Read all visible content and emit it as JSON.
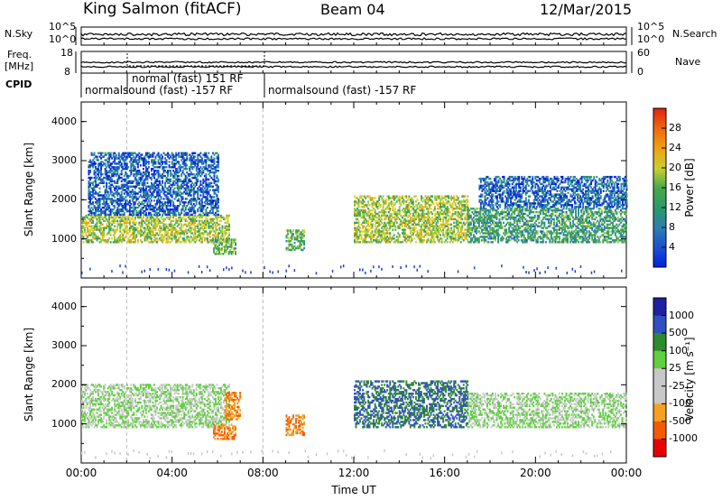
{
  "header": {
    "station": "King Salmon (fitACF)",
    "beam": "Beam 04",
    "date": "12/Mar/2015"
  },
  "strip": {
    "nsky_label": "N.Sky",
    "nsearch_label": "N.Search",
    "nsky_ticks": [
      "10^5",
      "10^0"
    ],
    "nsearch_ticks": [
      "10^5",
      "10^0"
    ],
    "freq_label": "Freq.",
    "freq_unit": "[MHz]",
    "freq_ticks": [
      "18",
      "8"
    ],
    "nave_label": "Nave",
    "nave_ticks": [
      "60",
      "0"
    ],
    "cpid_label": "CPID",
    "cpid_segments": [
      "normalsound (fast) -157 RF",
      "normal (fast) 151 RF",
      "normalsound (fast) -157 RF"
    ]
  },
  "chart_data": [
    {
      "type": "heatmap",
      "title": "",
      "ylabel": "Slant Range [km]",
      "xlabel": "",
      "x_range_hours": [
        0,
        24
      ],
      "ylim": [
        0,
        4500
      ],
      "yticks": [
        1000,
        2000,
        3000,
        4000
      ],
      "colorbar": {
        "label": "Power [dB]",
        "range": [
          0,
          32
        ],
        "ticks": [
          4,
          8,
          12,
          16,
          20,
          24,
          28
        ]
      },
      "regions": [
        {
          "t": [
            0.0,
            6.5
          ],
          "range_km": [
            900,
            1600
          ],
          "value": 18
        },
        {
          "t": [
            0.3,
            6.0
          ],
          "range_km": [
            1600,
            3200
          ],
          "value": 6
        },
        {
          "t": [
            5.8,
            6.8
          ],
          "range_km": [
            600,
            1000
          ],
          "value": 14
        },
        {
          "t": [
            9.0,
            9.8
          ],
          "range_km": [
            700,
            1200
          ],
          "value": 14
        },
        {
          "t": [
            12.0,
            17.0
          ],
          "range_km": [
            900,
            2100
          ],
          "value": 18
        },
        {
          "t": [
            17.0,
            24.0
          ],
          "range_km": [
            900,
            1800
          ],
          "value": 12
        },
        {
          "t": [
            17.5,
            24.0
          ],
          "range_km": [
            1800,
            2600
          ],
          "value": 6
        }
      ]
    },
    {
      "type": "heatmap",
      "title": "",
      "ylabel": "Slant Range [km]",
      "xlabel": "Time UT",
      "x_range_hours": [
        0,
        24
      ],
      "xticks": [
        "00:00",
        "04:00",
        "08:00",
        "12:00",
        "16:00",
        "20:00",
        "00:00"
      ],
      "ylim": [
        0,
        4500
      ],
      "yticks": [
        1000,
        2000,
        3000,
        4000
      ],
      "colorbar": {
        "label": "Velocity [m s⁻¹]",
        "ticks": [
          "1000",
          "500",
          "100",
          "25",
          "-25",
          "-100",
          "-500",
          "-1000"
        ]
      },
      "regions": [
        {
          "t": [
            0.0,
            6.5
          ],
          "range_km": [
            900,
            2000
          ],
          "value": 0
        },
        {
          "t": [
            5.8,
            6.8
          ],
          "range_km": [
            600,
            1000
          ],
          "value": -500
        },
        {
          "t": [
            6.3,
            7.0
          ],
          "range_km": [
            1100,
            1800
          ],
          "value": -500
        },
        {
          "t": [
            9.0,
            9.8
          ],
          "range_km": [
            700,
            1200
          ],
          "value": -500
        },
        {
          "t": [
            12.0,
            17.0
          ],
          "range_km": [
            900,
            2100
          ],
          "value": 100
        },
        {
          "t": [
            17.0,
            24.0
          ],
          "range_km": [
            900,
            1800
          ],
          "value": 0
        }
      ]
    }
  ],
  "colors": {
    "power": [
      "#0022dd",
      "#1a4fd0",
      "#2d7fb0",
      "#2a9a6a",
      "#4aa84a",
      "#9ac840",
      "#e6d020",
      "#f0a010",
      "#ef6a10",
      "#e02010"
    ],
    "velocity": [
      "#e80000",
      "#f55a00",
      "#f5a020",
      "#c8c8c8",
      "#c8c8c8",
      "#5fd040",
      "#2e8a2e",
      "#3050c0",
      "#2020a0"
    ]
  }
}
